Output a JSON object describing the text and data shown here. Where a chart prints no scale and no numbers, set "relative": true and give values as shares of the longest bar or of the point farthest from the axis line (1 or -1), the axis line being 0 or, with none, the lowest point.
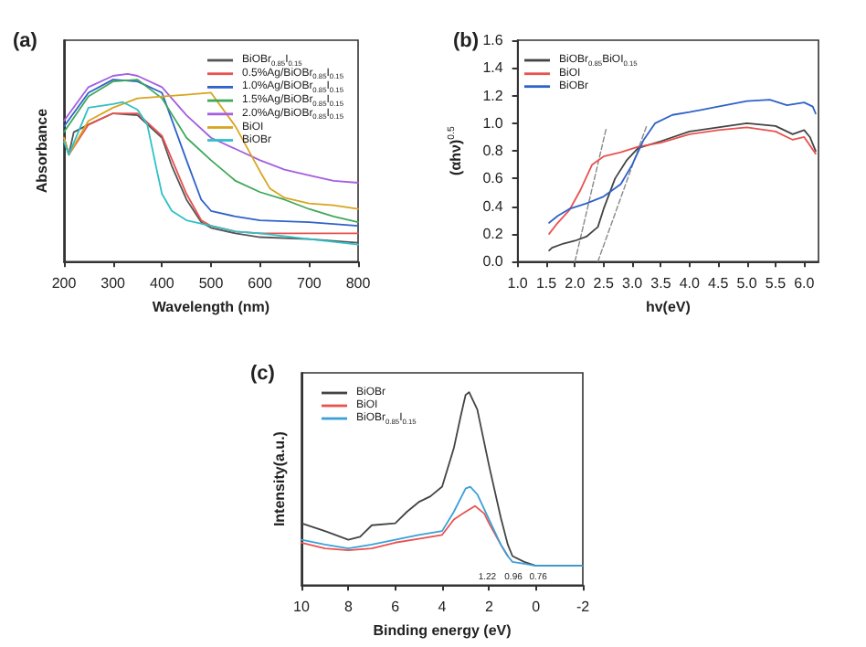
{
  "chart_data": [
    {
      "type": "line",
      "title": "(a)",
      "xlabel": "Wavelength (nm)",
      "ylabel": "Absorbance",
      "relative": true,
      "xlim": [
        200,
        800
      ],
      "xticks": [
        200,
        300,
        400,
        500,
        600,
        700,
        800
      ],
      "tick_labels": "x",
      "legend": "top right",
      "grid": false,
      "marker": "none",
      "series": [
        {
          "name": "BiOBr$_{0.85}$I$_{0.15}$",
          "color": "#555555",
          "x": [
            200,
            210,
            220,
            250,
            300,
            350,
            400,
            420,
            450,
            480,
            500,
            550,
            600,
            700,
            800
          ],
          "values": [
            0.66,
            0.57,
            0.69,
            0.73,
            0.79,
            0.78,
            0.66,
            0.51,
            0.33,
            0.21,
            0.18,
            0.15,
            0.13,
            0.12,
            0.1
          ]
        },
        {
          "name": "0.5%Ag/BiOBr$_{0.85}$I$_{0.15}$",
          "color": "#e8524f",
          "x": [
            200,
            210,
            250,
            300,
            350,
            400,
            450,
            480,
            500,
            550,
            600,
            700,
            800
          ],
          "values": [
            0.66,
            0.57,
            0.73,
            0.79,
            0.79,
            0.67,
            0.36,
            0.22,
            0.19,
            0.16,
            0.15,
            0.15,
            0.15
          ]
        },
        {
          "name": "1.0%Ag/BiOBr$_{0.85}$I$_{0.15}$",
          "color": "#2f62c8",
          "x": [
            200,
            250,
            300,
            350,
            400,
            450,
            480,
            500,
            550,
            600,
            700,
            800
          ],
          "values": [
            0.72,
            0.9,
            0.97,
            0.96,
            0.9,
            0.54,
            0.33,
            0.27,
            0.24,
            0.22,
            0.21,
            0.19
          ]
        },
        {
          "name": "1.5%Ag/BiOBr$_{0.85}$I$_{0.15}$",
          "color": "#3fa85a",
          "x": [
            200,
            250,
            300,
            350,
            400,
            450,
            500,
            550,
            600,
            650,
            700,
            750,
            800
          ],
          "values": [
            0.69,
            0.88,
            0.96,
            0.97,
            0.87,
            0.66,
            0.54,
            0.43,
            0.37,
            0.33,
            0.28,
            0.24,
            0.21
          ]
        },
        {
          "name": "2.0%Ag/BiOBr$_{0.85}$I$_{0.15}$",
          "color": "#a45ee0",
          "x": [
            200,
            250,
            300,
            330,
            350,
            400,
            450,
            500,
            550,
            600,
            650,
            700,
            750,
            800
          ],
          "values": [
            0.75,
            0.93,
            0.99,
            1,
            0.99,
            0.93,
            0.78,
            0.66,
            0.6,
            0.54,
            0.49,
            0.46,
            0.43,
            0.42
          ]
        },
        {
          "name": "BiOI",
          "color": "#d9a520",
          "x": [
            200,
            210,
            250,
            300,
            350,
            400,
            450,
            500,
            550,
            600,
            620,
            650,
            700,
            750,
            800
          ],
          "values": [
            0.66,
            0.57,
            0.75,
            0.82,
            0.87,
            0.88,
            0.89,
            0.9,
            0.72,
            0.48,
            0.39,
            0.34,
            0.31,
            0.3,
            0.28
          ]
        },
        {
          "name": "BiOBr",
          "color": "#2fc0c8",
          "x": [
            200,
            210,
            250,
            300,
            320,
            350,
            370,
            390,
            400,
            420,
            450,
            500,
            550,
            600,
            700,
            800
          ],
          "values": [
            0.64,
            0.57,
            0.82,
            0.84,
            0.85,
            0.81,
            0.73,
            0.48,
            0.36,
            0.27,
            0.22,
            0.19,
            0.16,
            0.15,
            0.12,
            0.09
          ]
        }
      ]
    },
    {
      "type": "line",
      "title": "(b)",
      "xlabel": "hv(eV)",
      "ylabel": "(αhν)$^{0.5}$",
      "xlim": [
        1.0,
        6.25
      ],
      "ylim": [
        0,
        1.6
      ],
      "xticks": [
        {
          "value": 1,
          "label": "1.0"
        },
        1.5,
        {
          "value": 2,
          "label": "2.0"
        },
        2.5,
        {
          "value": 3,
          "label": "3.0"
        },
        3.5,
        {
          "value": 4,
          "label": "4.0"
        },
        4.5,
        {
          "value": 5,
          "label": "5.0"
        },
        5.5,
        {
          "value": 6,
          "label": "6.0"
        }
      ],
      "yticks": [
        {
          "value": 0,
          "label": "0.0"
        },
        0.2,
        0.4,
        0.6,
        0.8,
        {
          "value": 1,
          "label": "1.0"
        },
        1.2,
        1.4,
        1.6
      ],
      "legend": "top left",
      "grid": false,
      "marker": "none",
      "series": [
        {
          "name": "BiOBr$_{0.85}$BiOI$_{0.15}$",
          "color": "#444444",
          "x": [
            1.55,
            1.6,
            1.8,
            2.0,
            2.2,
            2.4,
            2.5,
            2.7,
            2.9,
            3.1,
            3.5,
            4.0,
            4.5,
            5.0,
            5.5,
            5.8,
            6.0,
            6.1,
            6.2
          ],
          "values": [
            0.08,
            0.1,
            0.13,
            0.15,
            0.18,
            0.25,
            0.38,
            0.6,
            0.73,
            0.82,
            0.87,
            0.94,
            0.97,
            1.0,
            0.98,
            0.92,
            0.95,
            0.9,
            0.8
          ]
        },
        {
          "name": "BiOI",
          "color": "#e8524f",
          "x": [
            1.55,
            1.7,
            1.9,
            2.1,
            2.3,
            2.5,
            2.8,
            3.1,
            3.5,
            4.0,
            4.5,
            5.0,
            5.5,
            5.8,
            6.0,
            6.2
          ],
          "values": [
            0.2,
            0.28,
            0.37,
            0.52,
            0.7,
            0.76,
            0.79,
            0.83,
            0.86,
            0.92,
            0.95,
            0.97,
            0.94,
            0.88,
            0.9,
            0.78
          ]
        },
        {
          "name": "BiOBr",
          "color": "#2f62c8",
          "x": [
            1.55,
            1.7,
            1.9,
            2.2,
            2.5,
            2.8,
            3.0,
            3.2,
            3.4,
            3.7,
            4.0,
            4.5,
            5.0,
            5.4,
            5.7,
            6.0,
            6.15,
            6.2
          ],
          "values": [
            0.28,
            0.33,
            0.38,
            0.42,
            0.47,
            0.56,
            0.7,
            0.88,
            1.0,
            1.06,
            1.08,
            1.12,
            1.16,
            1.17,
            1.13,
            1.15,
            1.12,
            1.07
          ]
        },
        {
          "color": "#888888",
          "line_style": "dashed",
          "x": [
            2.0,
            2.55
          ],
          "values": [
            0,
            0.97
          ]
        },
        {
          "color": "#888888",
          "line_style": "dashed",
          "x": [
            2.4,
            3.25
          ],
          "values": [
            0,
            0.98
          ]
        }
      ]
    },
    {
      "type": "line",
      "title": "(c)",
      "xlabel": "Binding energy (eV)",
      "ylabel": "Intensity(a.u.)",
      "relative": true,
      "xlim": [
        10,
        -2
      ],
      "xticks": [
        10,
        8,
        6,
        4,
        2,
        0,
        -2
      ],
      "tick_labels": "x",
      "legend": "top left",
      "grid": false,
      "marker": "none",
      "annotations": [
        {
          "text": "1.22",
          "x": 1.22,
          "y": 0.1
        },
        {
          "text": "0.96",
          "x": 0.96,
          "y": 0.1
        },
        {
          "text": "0.76",
          "x": 0.76,
          "y": 0.1
        }
      ],
      "series": [
        {
          "name": "BiOBr",
          "color": "#444444",
          "x": [
            10,
            9,
            8,
            7.5,
            7,
            6,
            5.5,
            5,
            4.5,
            4,
            3.5,
            3.2,
            3,
            2.85,
            2.5,
            2,
            1.5,
            1.2,
            1,
            0.5,
            0,
            -1,
            -2
          ],
          "values": [
            0.32,
            0.28,
            0.235,
            0.25,
            0.31,
            0.32,
            0.38,
            0.43,
            0.46,
            0.51,
            0.71,
            0.88,
            0.985,
            1.0,
            0.91,
            0.62,
            0.35,
            0.21,
            0.15,
            0.12,
            0.1,
            0.1,
            0.1
          ]
        },
        {
          "name": "BiOI",
          "color": "#e8524f",
          "x": [
            10,
            9,
            8,
            7,
            6,
            5,
            4,
            3.5,
            3,
            2.6,
            2.2,
            2,
            1.5,
            1.2
          ],
          "values": [
            0.22,
            0.19,
            0.18,
            0.19,
            0.22,
            0.24,
            0.26,
            0.34,
            0.38,
            0.41,
            0.37,
            0.32,
            0.21,
            0.15
          ]
        },
        {
          "name": "BiOBr$_{0.85}$I$_{0.15}$",
          "color": "#3aa0d8",
          "x": [
            10,
            9,
            8,
            7,
            6,
            5,
            4,
            3.5,
            3,
            2.8,
            2.5,
            2,
            1.5,
            1.2,
            1,
            0.5,
            0,
            -2
          ],
          "values": [
            0.235,
            0.21,
            0.19,
            0.21,
            0.235,
            0.26,
            0.28,
            0.38,
            0.5,
            0.51,
            0.47,
            0.34,
            0.21,
            0.15,
            0.12,
            0.11,
            0.1,
            0.1
          ]
        }
      ]
    }
  ]
}
